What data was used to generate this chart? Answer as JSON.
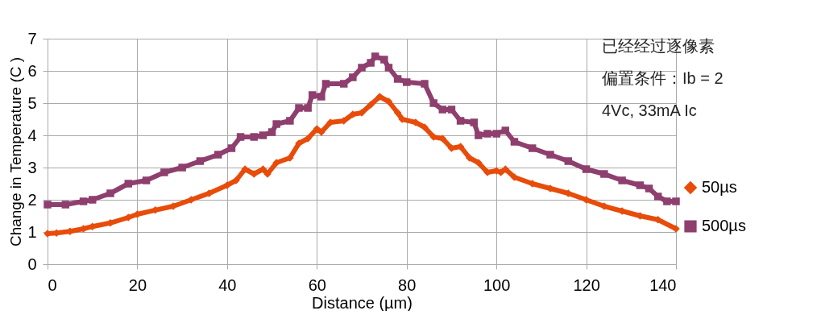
{
  "chart_data": {
    "type": "line",
    "xlabel": "Distance (µm)",
    "ylabel": "Change in Temperature (C )",
    "xlim": [
      0,
      140
    ],
    "xticks": [
      0,
      20,
      40,
      60,
      80,
      100,
      120,
      140
    ],
    "ylim": [
      0,
      7
    ],
    "yticks": [
      0,
      1,
      2,
      3,
      4,
      5,
      6,
      7
    ],
    "grid": true,
    "legend": "right",
    "line_style": "solid",
    "annotations": [
      "已经经过逐像素",
      "偏置条件：Ib = 2",
      "4Vc, 33mA Ic"
    ],
    "series": [
      {
        "name": "50µs",
        "color": "#e84c0a",
        "marker": "diamond",
        "x": [
          0,
          2,
          5,
          8,
          10,
          14,
          18,
          20,
          24,
          28,
          32,
          36,
          40,
          42,
          44,
          46,
          48,
          49,
          51,
          54,
          56,
          58,
          60,
          61,
          63,
          66,
          68,
          70,
          72,
          74,
          76,
          78,
          79,
          82,
          84,
          86,
          88,
          90,
          92,
          94,
          96,
          98,
          100,
          101,
          102,
          104,
          108,
          112,
          116,
          120,
          124,
          128,
          132,
          136,
          140
        ],
        "values": [
          0.95,
          0.97,
          1.02,
          1.1,
          1.17,
          1.28,
          1.45,
          1.55,
          1.68,
          1.8,
          2.0,
          2.2,
          2.45,
          2.6,
          2.95,
          2.8,
          2.95,
          2.8,
          3.15,
          3.3,
          3.75,
          3.9,
          4.2,
          4.1,
          4.4,
          4.45,
          4.65,
          4.7,
          4.95,
          5.2,
          5.05,
          4.7,
          4.5,
          4.4,
          4.25,
          3.95,
          3.9,
          3.6,
          3.65,
          3.3,
          3.15,
          2.85,
          2.9,
          2.85,
          2.95,
          2.7,
          2.5,
          2.35,
          2.2,
          2.0,
          1.8,
          1.65,
          1.5,
          1.38,
          1.1
        ]
      },
      {
        "name": "500µs",
        "color": "#8e3f6e",
        "marker": "square",
        "x": [
          0,
          4,
          8,
          10,
          14,
          18,
          22,
          26,
          30,
          34,
          38,
          41,
          43,
          46,
          48,
          50,
          51,
          54,
          56,
          58,
          59,
          61,
          62,
          66,
          68,
          70,
          72,
          73,
          75,
          76,
          78,
          80,
          84,
          86,
          88,
          90,
          92,
          95,
          96,
          98,
          100,
          102,
          104,
          108,
          112,
          116,
          120,
          124,
          128,
          132,
          134,
          136,
          138,
          140
        ],
        "values": [
          1.85,
          1.85,
          1.95,
          2.0,
          2.2,
          2.5,
          2.6,
          2.85,
          3.0,
          3.2,
          3.4,
          3.6,
          3.95,
          3.95,
          4.0,
          4.1,
          4.35,
          4.45,
          4.85,
          4.85,
          5.25,
          5.2,
          5.6,
          5.6,
          5.8,
          6.1,
          6.25,
          6.45,
          6.35,
          6.1,
          5.75,
          5.65,
          5.6,
          5.0,
          4.8,
          4.8,
          4.45,
          4.4,
          4.0,
          4.05,
          4.05,
          4.15,
          3.8,
          3.6,
          3.4,
          3.2,
          2.95,
          2.8,
          2.6,
          2.45,
          2.35,
          2.1,
          1.95,
          1.95
        ]
      }
    ]
  }
}
